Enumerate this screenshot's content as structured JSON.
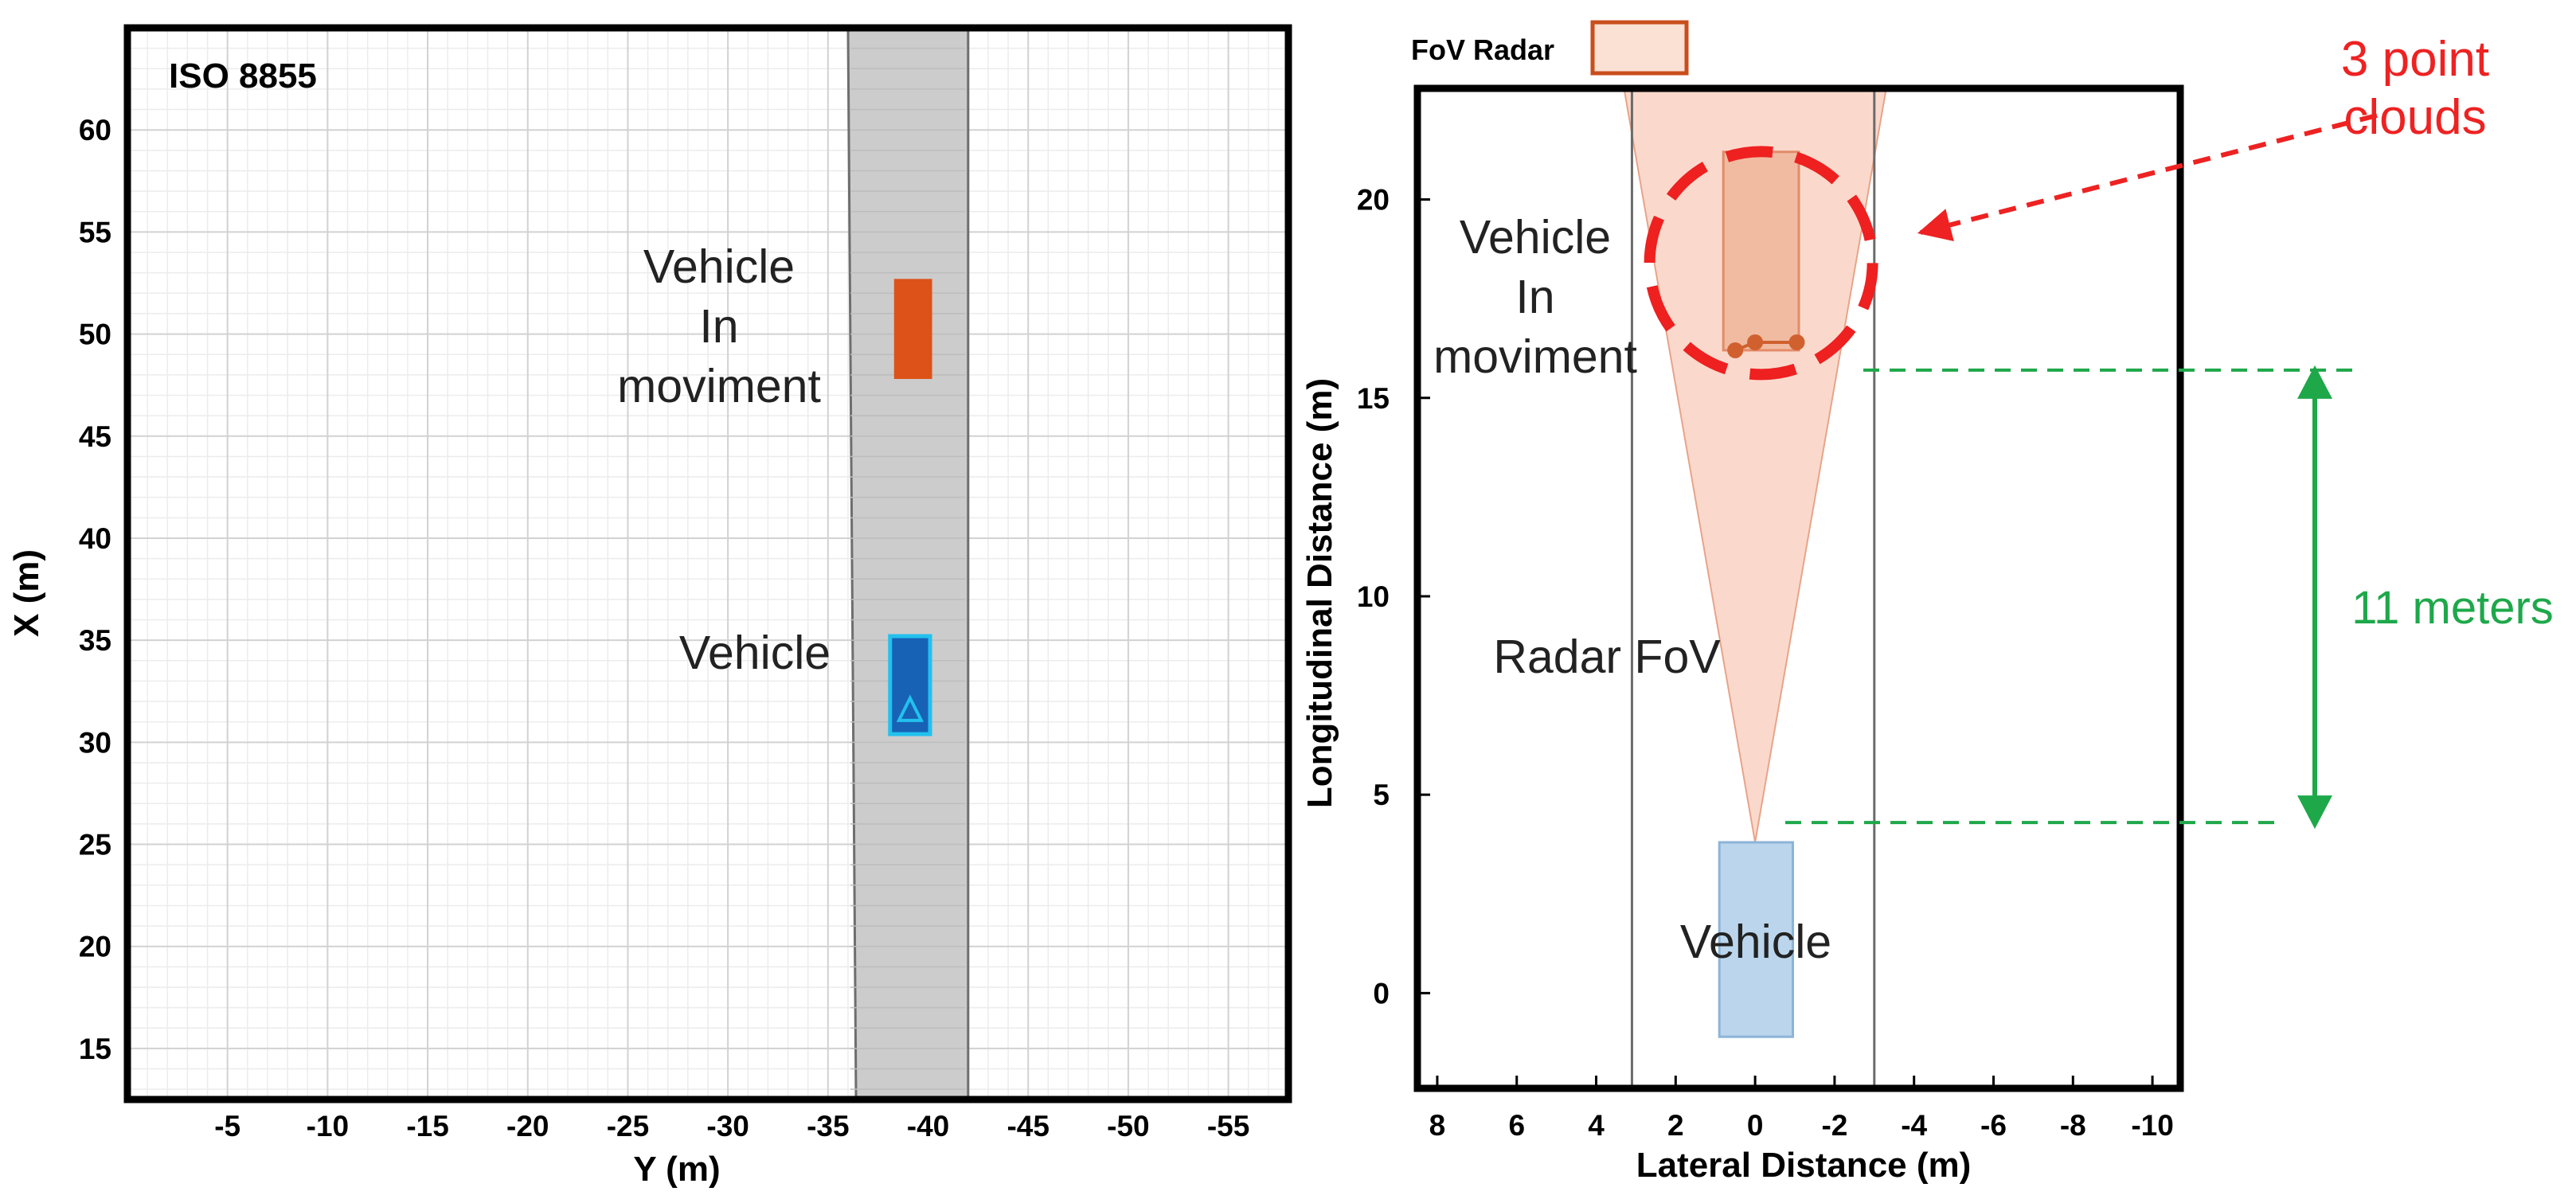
{
  "chart_data": [
    {
      "type": "scatter",
      "title": "ISO 8855",
      "xlabel": "Y (m)",
      "ylabel": "X (m)",
      "xlim": [
        0,
        -58
      ],
      "ylim": [
        12.5,
        65
      ],
      "xticks": [
        -5,
        -10,
        -15,
        -20,
        -25,
        -30,
        -35,
        -40,
        -45,
        -50,
        -55
      ],
      "xtick_labels": [
        "-5",
        "-10",
        "-15",
        "-20",
        "-25",
        "-30",
        "-35",
        "-40",
        "-45",
        "-50",
        "-55"
      ],
      "yticks": [
        15,
        20,
        25,
        30,
        35,
        40,
        45,
        50,
        55,
        60
      ],
      "ytick_labels": [
        "15",
        "20",
        "25",
        "30",
        "35",
        "40",
        "45",
        "50",
        "55",
        "60"
      ],
      "grid": true,
      "road": {
        "left_edge": [
          -36,
          -36.4
        ],
        "right_edge": [
          -42,
          -42
        ],
        "color": "#cccccc"
      },
      "objects": [
        {
          "name": "vehicle-in-movement",
          "label_lines": [
            "Vehicle",
            "In",
            "moviment"
          ],
          "y_range": [
            -38.3,
            -40.2
          ],
          "x_range": [
            47.8,
            52.7
          ],
          "color": "#dd5218"
        },
        {
          "name": "ego-vehicle",
          "label_lines": [
            "Vehicle"
          ],
          "y_range": [
            -38.1,
            -40.1
          ],
          "x_range": [
            30.4,
            35.2
          ],
          "color": "#1762b5",
          "outline": "#22c1ee"
        }
      ]
    },
    {
      "type": "scatter",
      "title": "",
      "xlabel": "Lateral Distance (m)",
      "ylabel": "Longitudinal Distance (m)",
      "xlim": [
        8.5,
        -10.7
      ],
      "ylim": [
        -2.4,
        22.8
      ],
      "xticks": [
        8,
        6,
        4,
        2,
        0,
        -2,
        -4,
        -6,
        -8,
        -10
      ],
      "xtick_labels": [
        "8",
        "6",
        "4",
        "2",
        "0",
        "-2",
        "-4",
        "-6",
        "-8",
        "-10"
      ],
      "yticks": [
        0,
        5,
        10,
        15,
        20
      ],
      "ytick_labels": [
        "0",
        "5",
        "10",
        "15",
        "20"
      ],
      "grid": false,
      "legend": {
        "label": "FoV Radar",
        "color": "#fbe0d4",
        "edge": "#c94e1c",
        "position": "top-left"
      },
      "lane_lines": [
        3.1,
        -3.0
      ],
      "radar_fov": {
        "apex": [
          0,
          3.8
        ],
        "left_top": [
          3.3,
          22.8
        ],
        "right_top": [
          -3.3,
          22.8
        ],
        "color": "#fad9cc"
      },
      "objects": [
        {
          "name": "target-vehicle",
          "label_lines": [
            "Vehicle",
            "In",
            "moviment"
          ],
          "lateral_range": [
            0.8,
            -1.1
          ],
          "longitudinal_range": [
            16.2,
            21.2
          ],
          "color": "#f0b79d"
        },
        {
          "name": "ego-vehicle",
          "label_lines": [
            "Vehicle"
          ],
          "lateral_range": [
            0.9,
            -0.95
          ],
          "longitudinal_range": [
            -1.1,
            3.8
          ],
          "color": "#bbd6ec"
        }
      ],
      "point_cloud": [
        {
          "lateral": 0.5,
          "longitudinal": 16.2
        },
        {
          "lateral": 0.0,
          "longitudinal": 16.4
        },
        {
          "lateral": -1.05,
          "longitudinal": 16.4
        }
      ],
      "annotations": {
        "radar_label": "Radar FoV",
        "point_clouds_lines": [
          "3 point",
          "clouds"
        ],
        "distance_label": "11 meters",
        "distance_from": 4.3,
        "distance_to": 15.7
      }
    }
  ]
}
